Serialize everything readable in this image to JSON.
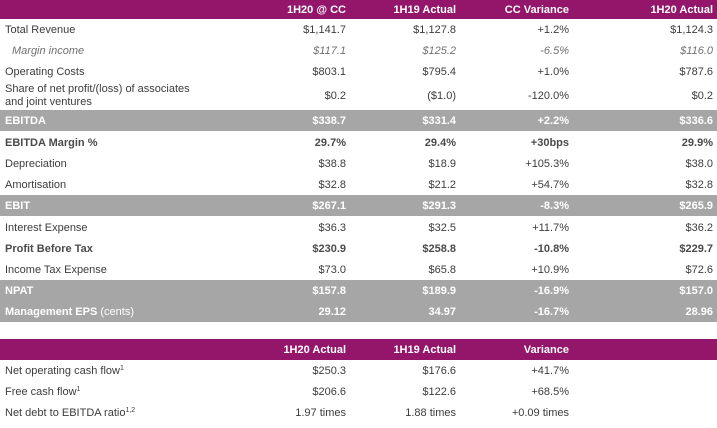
{
  "table1": {
    "headers": [
      "",
      "1H20 @ CC",
      "1H19 Actual",
      "CC Variance",
      "1H20 Actual"
    ],
    "rows": [
      {
        "label": "Total Revenue",
        "v": [
          "$1,141.7",
          "$1,127.8",
          "+1.2%",
          "$1,124.3"
        ]
      },
      {
        "label": "Margin income",
        "v": [
          "$117.1",
          "$125.2",
          "-6.5%",
          "$116.0"
        ]
      },
      {
        "label": "Operating Costs",
        "v": [
          "$803.1",
          "$795.4",
          "+1.0%",
          "$787.6"
        ]
      },
      {
        "label": "Share of net profit/(loss) of associates and joint ventures",
        "label_line1": "Share of net profit/(loss) of associates",
        "label_line2": "and joint ventures",
        "v": [
          "$0.2",
          "($1.0)",
          "-120.0%",
          "$0.2"
        ]
      },
      {
        "label": "EBITDA",
        "v": [
          "$338.7",
          "$331.4",
          "+2.2%",
          "$336.6"
        ]
      },
      {
        "label": "EBITDA Margin %",
        "v": [
          "29.7%",
          "29.4%",
          "+30bps",
          "29.9%"
        ]
      },
      {
        "label": "Depreciation",
        "v": [
          "$38.8",
          "$18.9",
          "+105.3%",
          "$38.0"
        ]
      },
      {
        "label": "Amortisation",
        "v": [
          "$32.8",
          "$21.2",
          "+54.7%",
          "$32.8"
        ]
      },
      {
        "label": "EBIT",
        "v": [
          "$267.1",
          "$291.3",
          "-8.3%",
          "$265.9"
        ]
      },
      {
        "label": "Interest Expense",
        "v": [
          "$36.3",
          "$32.5",
          "+11.7%",
          "$36.2"
        ]
      },
      {
        "label": "Profit Before Tax",
        "v": [
          "$230.9",
          "$258.8",
          "-10.8%",
          "$229.7"
        ]
      },
      {
        "label": "Income Tax Expense",
        "v": [
          "$73.0",
          "$65.8",
          "+10.9%",
          "$72.6"
        ]
      },
      {
        "label": "NPAT",
        "v": [
          "$157.8",
          "$189.9",
          "-16.9%",
          "$157.0"
        ]
      },
      {
        "label": "Management EPS",
        "label_suffix": "(cents)",
        "v": [
          "29.12",
          "34.97",
          "-16.7%",
          "28.96"
        ]
      }
    ]
  },
  "table2": {
    "headers": [
      "",
      "1H20 Actual",
      "1H19 Actual",
      "Variance",
      ""
    ],
    "rows": [
      {
        "label": "Net operating cash flow",
        "sup": "1",
        "v": [
          "$250.3",
          "$176.6",
          "+41.7%"
        ]
      },
      {
        "label": "Free cash flow",
        "sup": "1",
        "v": [
          "$206.6",
          "$122.6",
          "+68.5%"
        ]
      },
      {
        "label": "Net debt to EBITDA ratio",
        "sup": "1,2",
        "v": [
          "1.97 times",
          "1.88 times",
          "+0.09 times"
        ]
      }
    ]
  },
  "colors": {
    "header_bg": "#93166b",
    "highlight_bg": "#a6a6a6",
    "text": "#3c3c3c"
  }
}
